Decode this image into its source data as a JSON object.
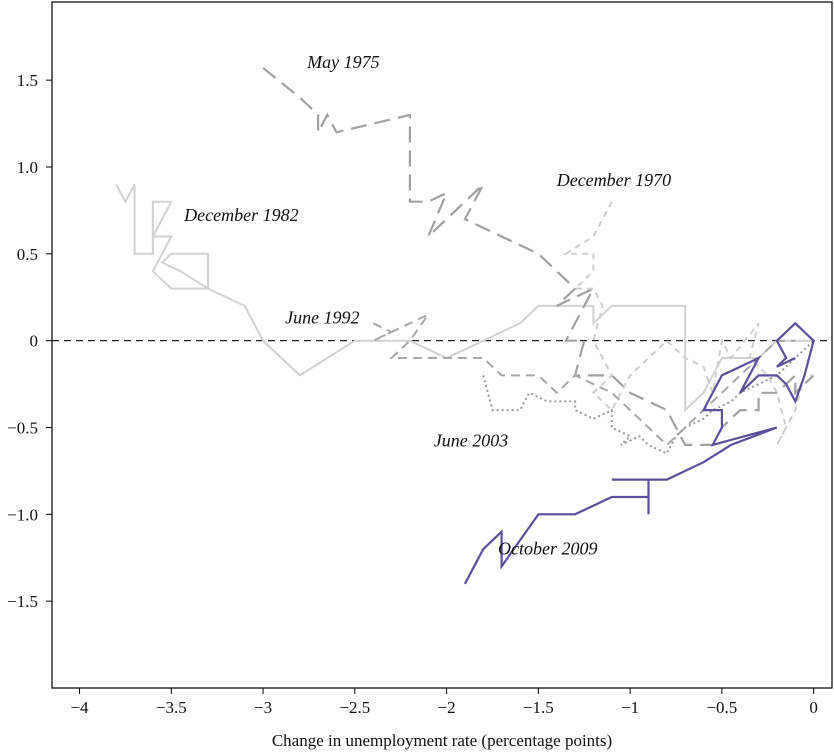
{
  "chart_data": {
    "type": "line",
    "title": "",
    "xlabel": "Change in unemployment rate (percentage points)",
    "ylabel": "",
    "xlim": [
      -4.15,
      0.1
    ],
    "ylim": [
      -2.0,
      1.95
    ],
    "xticks": [
      -4,
      -3.5,
      -3,
      -2.5,
      -2,
      -1.5,
      -1,
      -0.5,
      0
    ],
    "xtick_labels": [
      "−4",
      "−3.5",
      "−3",
      "−2.5",
      "−2",
      "−1.5",
      "−1",
      "−0.5",
      "0"
    ],
    "yticks": [
      1.5,
      1.0,
      0.5,
      0,
      -0.5,
      -1.0,
      -1.5
    ],
    "ytick_labels": [
      "1.5",
      "1.0",
      "0.5",
      "0",
      "−0.5",
      "−1.0",
      "−1.5"
    ],
    "grid": false,
    "reference_line": {
      "y": 0,
      "style": "dashed",
      "color": "#222222"
    },
    "series": [
      {
        "color": "#d2d2d2",
        "dash": "none",
        "width": 2,
        "points": [
          [
            -3.8,
            0.9
          ],
          [
            -3.75,
            0.8
          ],
          [
            -3.7,
            0.9
          ],
          [
            -3.7,
            0.5
          ],
          [
            -3.6,
            0.5
          ],
          [
            -3.6,
            0.8
          ],
          [
            -3.5,
            0.8
          ],
          [
            -3.6,
            0.6
          ],
          [
            -3.5,
            0.6
          ],
          [
            -3.6,
            0.4
          ],
          [
            -3.5,
            0.3
          ],
          [
            -3.3,
            0.3
          ],
          [
            -3.45,
            0.4
          ],
          [
            -3.55,
            0.45
          ],
          [
            -3.5,
            0.5
          ],
          [
            -3.3,
            0.5
          ],
          [
            -3.3,
            0.3
          ],
          [
            -3.1,
            0.2
          ],
          [
            -3.0,
            0.0
          ],
          [
            -2.8,
            -0.2
          ],
          [
            -2.5,
            0.0
          ],
          [
            -2.3,
            0.0
          ],
          [
            -2.2,
            0.0
          ],
          [
            -2.0,
            -0.1
          ],
          [
            -1.8,
            0.0
          ],
          [
            -1.6,
            0.1
          ],
          [
            -1.5,
            0.2
          ],
          [
            -1.2,
            0.2
          ],
          [
            -1.2,
            0.1
          ],
          [
            -1.1,
            0.2
          ],
          [
            -0.7,
            0.2
          ],
          [
            -0.7,
            -0.4
          ],
          [
            -0.6,
            -0.3
          ],
          [
            -0.5,
            -0.1
          ],
          [
            -0.3,
            -0.1
          ],
          [
            -0.2,
            0.0
          ],
          [
            -0.1,
            0.0
          ],
          [
            0.0,
            0.0
          ]
        ]
      },
      {
        "color": "#a2a2a2",
        "dash": "16,8",
        "width": 2.2,
        "points": [
          [
            -3.0,
            1.57
          ],
          [
            -2.8,
            1.4
          ],
          [
            -2.7,
            1.3
          ],
          [
            -2.7,
            1.2
          ],
          [
            -2.65,
            1.3
          ],
          [
            -2.6,
            1.2
          ],
          [
            -2.2,
            1.3
          ],
          [
            -2.2,
            0.8
          ],
          [
            -2.1,
            0.8
          ],
          [
            -2.0,
            0.85
          ],
          [
            -2.1,
            0.6
          ],
          [
            -1.9,
            0.8
          ],
          [
            -1.8,
            0.9
          ],
          [
            -1.9,
            0.7
          ],
          [
            -1.7,
            0.6
          ],
          [
            -1.5,
            0.5
          ],
          [
            -1.4,
            0.4
          ],
          [
            -1.3,
            0.3
          ],
          [
            -1.4,
            0.2
          ],
          [
            -1.3,
            0.25
          ],
          [
            -1.2,
            0.3
          ],
          [
            -1.35,
            0.0
          ],
          [
            -1.25,
            0.0
          ],
          [
            -1.3,
            -0.2
          ],
          [
            -1.1,
            -0.2
          ],
          [
            -1.0,
            -0.3
          ],
          [
            -0.8,
            -0.4
          ],
          [
            -0.7,
            -0.6
          ],
          [
            -0.55,
            -0.6
          ],
          [
            -0.5,
            -0.5
          ],
          [
            -0.4,
            -0.4
          ],
          [
            -0.3,
            -0.4
          ],
          [
            -0.3,
            -0.3
          ],
          [
            -0.2,
            -0.3
          ],
          [
            -0.1,
            -0.2
          ],
          [
            -0.1,
            -0.3
          ],
          [
            0.0,
            -0.2
          ]
        ]
      },
      {
        "color": "#cfcfcf",
        "dash": "6,5",
        "width": 2,
        "points": [
          [
            -1.1,
            0.8
          ],
          [
            -1.15,
            0.7
          ],
          [
            -1.2,
            0.6
          ],
          [
            -1.35,
            0.5
          ],
          [
            -1.2,
            0.5
          ],
          [
            -1.2,
            0.4
          ],
          [
            -1.3,
            0.3
          ],
          [
            -1.2,
            0.3
          ],
          [
            -1.15,
            0.2
          ],
          [
            -1.2,
            0.0
          ],
          [
            -1.1,
            -0.2
          ],
          [
            -1.2,
            -0.3
          ],
          [
            -1.1,
            -0.4
          ],
          [
            -1.0,
            -0.2
          ],
          [
            -0.9,
            -0.1
          ],
          [
            -0.8,
            0.0
          ],
          [
            -0.7,
            -0.1
          ],
          [
            -0.6,
            -0.15
          ],
          [
            -0.55,
            -0.3
          ],
          [
            -0.5,
            0.0
          ],
          [
            -0.45,
            -0.1
          ],
          [
            -0.3,
            0.1
          ],
          [
            -0.35,
            -0.1
          ],
          [
            -0.25,
            -0.2
          ],
          [
            -0.2,
            -0.3
          ],
          [
            -0.15,
            -0.5
          ],
          [
            -0.2,
            -0.6
          ],
          [
            -0.1,
            -0.4
          ],
          [
            -0.05,
            -0.2
          ],
          [
            0.0,
            -0.2
          ]
        ]
      },
      {
        "color": "#a8a8a8",
        "dash": "9,6",
        "width": 2,
        "points": [
          [
            -2.4,
            0.1
          ],
          [
            -2.3,
            0.05
          ],
          [
            -2.4,
            0.0
          ],
          [
            -2.2,
            0.1
          ],
          [
            -2.1,
            0.15
          ],
          [
            -2.2,
            0.0
          ],
          [
            -2.3,
            -0.1
          ],
          [
            -1.9,
            -0.1
          ],
          [
            -1.8,
            -0.1
          ],
          [
            -1.7,
            -0.2
          ],
          [
            -1.5,
            -0.2
          ],
          [
            -1.4,
            -0.3
          ],
          [
            -1.3,
            -0.2
          ],
          [
            -1.1,
            -0.3
          ],
          [
            -1.0,
            -0.4
          ],
          [
            -0.9,
            -0.5
          ],
          [
            -0.8,
            -0.6
          ],
          [
            -0.7,
            -0.5
          ],
          [
            -0.6,
            -0.4
          ],
          [
            -0.5,
            -0.3
          ],
          [
            -0.4,
            -0.2
          ],
          [
            -0.3,
            -0.1
          ],
          [
            -0.2,
            0.0
          ],
          [
            -0.1,
            0.0
          ]
        ]
      },
      {
        "color": "#9a9a9a",
        "dash": "2,3",
        "width": 2,
        "points": [
          [
            -1.8,
            -0.2
          ],
          [
            -1.75,
            -0.4
          ],
          [
            -1.6,
            -0.4
          ],
          [
            -1.55,
            -0.3
          ],
          [
            -1.45,
            -0.35
          ],
          [
            -1.3,
            -0.35
          ],
          [
            -1.3,
            -0.4
          ],
          [
            -1.2,
            -0.45
          ],
          [
            -1.1,
            -0.4
          ],
          [
            -1.1,
            -0.5
          ],
          [
            -1.0,
            -0.55
          ],
          [
            -1.05,
            -0.6
          ],
          [
            -0.95,
            -0.55
          ],
          [
            -0.9,
            -0.6
          ],
          [
            -0.8,
            -0.65
          ],
          [
            -0.75,
            -0.55
          ],
          [
            -0.7,
            -0.5
          ],
          [
            -0.6,
            -0.45
          ],
          [
            -0.55,
            -0.4
          ],
          [
            -0.45,
            -0.35
          ],
          [
            -0.4,
            -0.3
          ],
          [
            -0.3,
            -0.25
          ],
          [
            -0.2,
            -0.2
          ],
          [
            -0.1,
            -0.1
          ],
          [
            0.0,
            0.0
          ]
        ]
      },
      {
        "color": "#5e4f9c",
        "dash": "none",
        "width": 2.2,
        "points": [
          [
            -1.9,
            -1.4
          ],
          [
            -1.8,
            -1.2
          ],
          [
            -1.7,
            -1.1
          ],
          [
            -1.7,
            -1.3
          ],
          [
            -1.5,
            -1.0
          ],
          [
            -1.3,
            -1.0
          ],
          [
            -1.1,
            -0.9
          ],
          [
            -0.9,
            -0.9
          ],
          [
            -0.9,
            -1.0
          ],
          [
            -0.9,
            -0.8
          ],
          [
            -1.0,
            -0.8
          ],
          [
            -1.1,
            -0.8
          ],
          [
            -0.8,
            -0.8
          ],
          [
            -0.6,
            -0.7
          ],
          [
            -0.45,
            -0.6
          ],
          [
            -0.2,
            -0.5
          ],
          [
            -0.55,
            -0.6
          ],
          [
            -0.5,
            -0.5
          ],
          [
            -0.5,
            -0.4
          ],
          [
            -0.6,
            -0.4
          ],
          [
            -0.5,
            -0.2
          ],
          [
            -0.3,
            -0.1
          ],
          [
            -0.4,
            -0.3
          ],
          [
            -0.3,
            -0.2
          ],
          [
            -0.2,
            -0.2
          ],
          [
            -0.15,
            -0.25
          ],
          [
            -0.1,
            -0.35
          ],
          [
            -0.05,
            -0.2
          ],
          [
            0.0,
            0.0
          ],
          [
            -0.1,
            0.1
          ],
          [
            -0.2,
            0.0
          ],
          [
            -0.15,
            -0.1
          ],
          [
            -0.2,
            -0.15
          ],
          [
            -0.1,
            -0.1
          ]
        ]
      }
    ],
    "annotations": [
      {
        "text": "May 1975",
        "x": -2.76,
        "y": 1.57
      },
      {
        "text": "December 1982",
        "x": -3.43,
        "y": 0.69
      },
      {
        "text": "December 1970",
        "x": -1.4,
        "y": 0.89
      },
      {
        "text": "June 1992",
        "x": -2.88,
        "y": 0.1
      },
      {
        "text": "June 2003",
        "x": -2.07,
        "y": -0.61
      },
      {
        "text": "October 2009",
        "x": -1.72,
        "y": -1.23
      }
    ]
  }
}
